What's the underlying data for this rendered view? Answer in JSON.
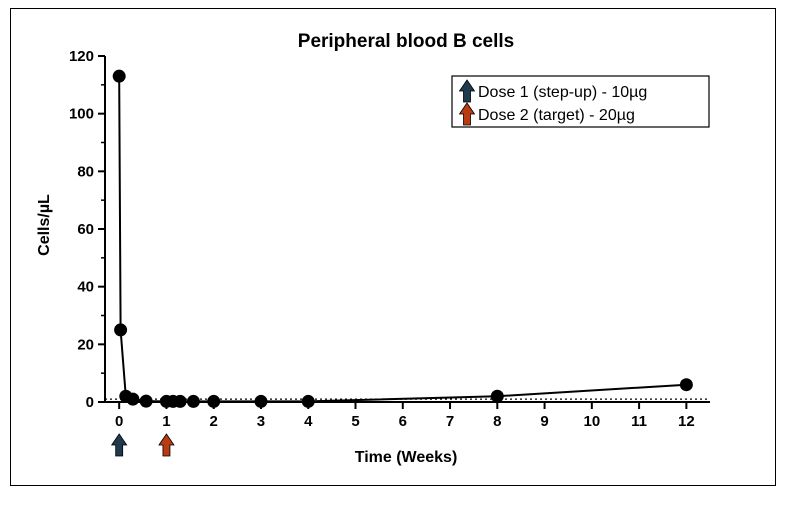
{
  "chart_data": {
    "type": "line",
    "title": "Peripheral blood B cells",
    "xlabel": "Time (Weeks)",
    "ylabel": "Cells/µL",
    "xlim": [
      -0.3,
      12.5
    ],
    "ylim": [
      0,
      120
    ],
    "x_ticks": [
      0,
      1,
      2,
      3,
      4,
      5,
      6,
      7,
      8,
      9,
      10,
      11,
      12
    ],
    "y_ticks": [
      0,
      20,
      40,
      60,
      80,
      100,
      120
    ],
    "grid": false,
    "reference_line": {
      "y": 1,
      "style": "dotted"
    },
    "legend_position": "top-right",
    "series": [
      {
        "x": [
          0,
          0.03,
          0.14,
          0.29,
          0.57,
          1.0,
          1.14,
          1.29,
          1.57,
          2.0,
          3.0,
          4.0,
          8.0,
          12.0
        ],
        "y": [
          113,
          25,
          2,
          1,
          0.3,
          0.2,
          0.2,
          0.2,
          0.2,
          0.2,
          0.2,
          0.2,
          2,
          6
        ],
        "color": "#000000"
      }
    ],
    "dose_markers": [
      {
        "label": "Dose 1 (step-up) - 10µg",
        "x": 0,
        "color": "#1f3a4d"
      },
      {
        "label": "Dose 2 (target) - 20µg",
        "x": 1,
        "color": "#b83c12"
      }
    ]
  }
}
